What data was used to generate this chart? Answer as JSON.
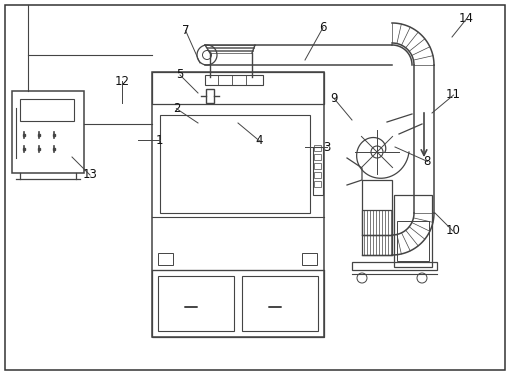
{
  "figsize": [
    5.11,
    3.75
  ],
  "dpi": 100,
  "bg_color": "#ffffff",
  "line_color": "#444444",
  "lw": 0.9,
  "labels": {
    "1": [
      1.38,
      2.35,
      0.12,
      0.0
    ],
    "2": [
      1.98,
      2.52,
      -0.12,
      0.08
    ],
    "3": [
      3.05,
      2.28,
      0.12,
      0.0
    ],
    "4": [
      2.38,
      2.52,
      0.12,
      -0.1
    ],
    "5": [
      1.98,
      2.82,
      -0.1,
      0.1
    ],
    "6": [
      3.05,
      3.15,
      0.1,
      0.18
    ],
    "7": [
      2.0,
      3.12,
      -0.08,
      0.18
    ],
    "8": [
      3.95,
      2.28,
      0.18,
      -0.08
    ],
    "9": [
      3.52,
      2.55,
      -0.1,
      0.12
    ],
    "10": [
      4.35,
      1.62,
      0.1,
      -0.1
    ],
    "11": [
      4.32,
      2.62,
      0.12,
      0.1
    ],
    "12": [
      1.22,
      2.72,
      0.0,
      0.12
    ],
    "13": [
      0.72,
      2.18,
      0.1,
      -0.1
    ],
    "14": [
      4.52,
      3.38,
      0.08,
      0.1
    ]
  }
}
